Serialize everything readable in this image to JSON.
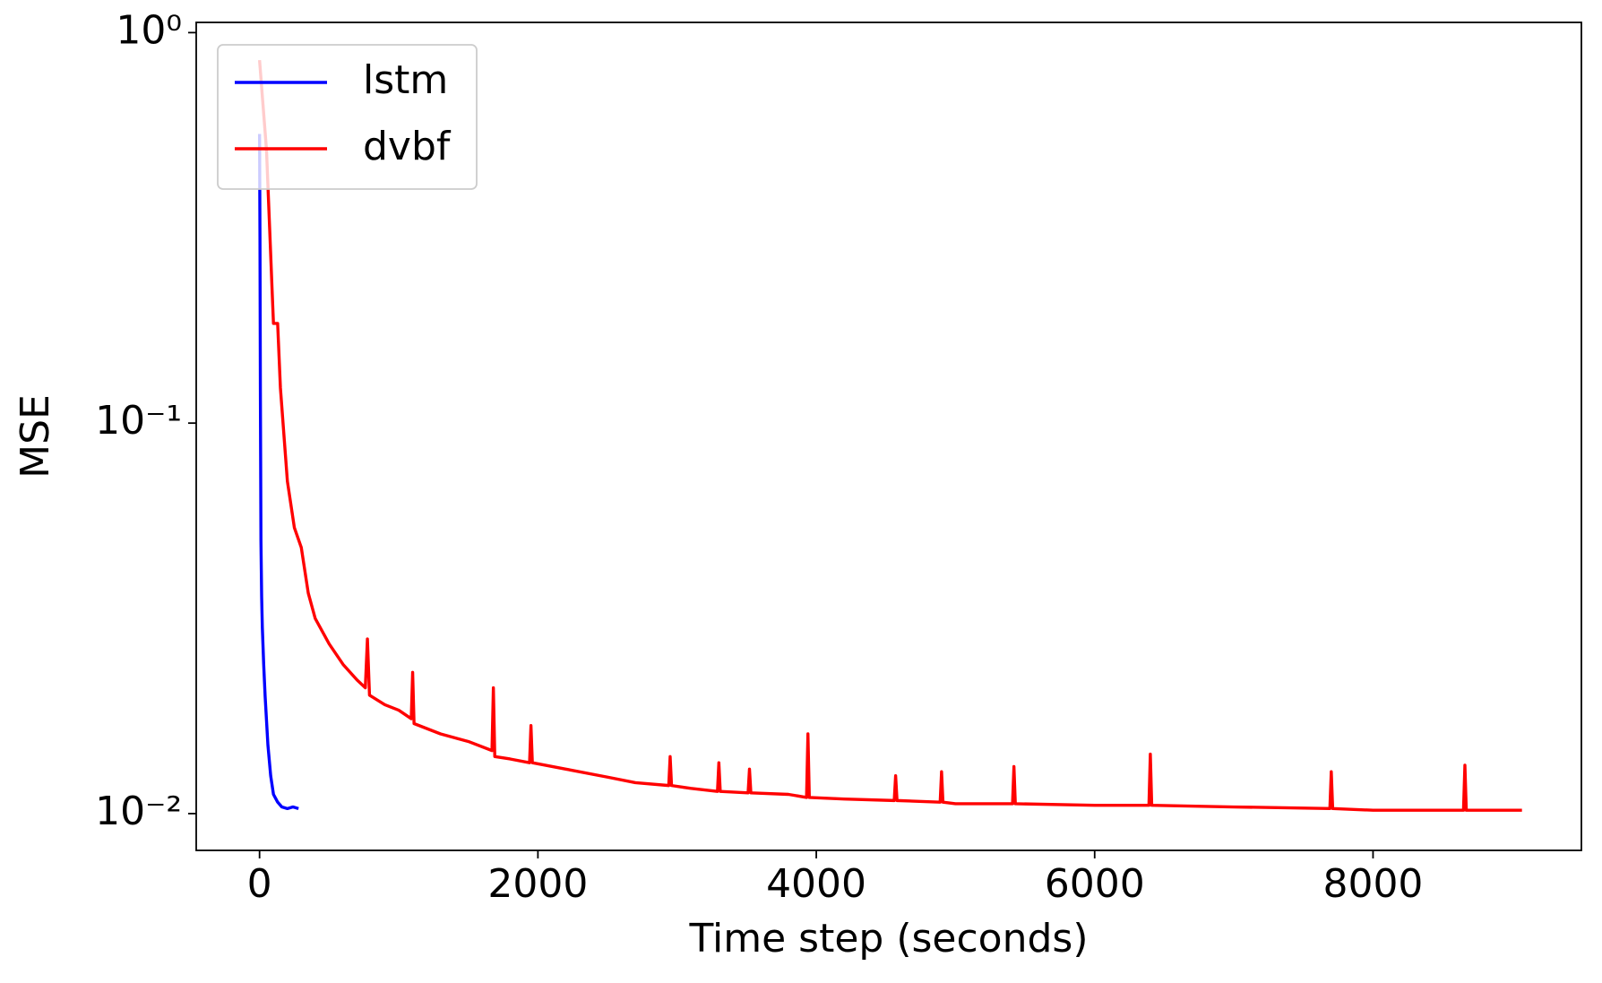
{
  "chart_data": {
    "type": "line",
    "xlabel": "Time step (seconds)",
    "ylabel": "MSE",
    "log_y": true,
    "grid": false,
    "legend": "upper left",
    "xlim": [
      -455,
      9497
    ],
    "xticks": [
      0,
      2000,
      4000,
      6000,
      8000
    ],
    "ylim": [
      0.00805,
      1.062
    ],
    "yticks": [
      {
        "value": 1,
        "label": "10⁰"
      },
      {
        "value": 0.1,
        "label": "10⁻¹"
      },
      {
        "value": 0.01,
        "label": "10⁻²"
      }
    ],
    "series": [
      {
        "name": "lstm",
        "color": "#0000ff",
        "x": [
          0,
          3,
          6,
          10,
          15,
          20,
          30,
          40,
          60,
          80,
          100,
          130,
          160,
          200,
          240,
          280
        ],
        "values": [
          0.55,
          0.3,
          0.12,
          0.05,
          0.036,
          0.03,
          0.024,
          0.02,
          0.015,
          0.0125,
          0.0112,
          0.0107,
          0.0104,
          0.0103,
          0.0104,
          0.0103
        ]
      },
      {
        "name": "dvbf",
        "color": "#ff0000",
        "x": [
          0,
          50,
          75,
          90,
          100,
          130,
          150,
          200,
          250,
          300,
          350,
          400,
          500,
          600,
          700,
          760,
          775,
          790,
          900,
          1000,
          1090,
          1100,
          1110,
          1300,
          1500,
          1670,
          1680,
          1690,
          1800,
          1940,
          1950,
          1960,
          2200,
          2500,
          2700,
          2940,
          2950,
          2960,
          3100,
          3290,
          3300,
          3310,
          3510,
          3520,
          3530,
          3800,
          3930,
          3940,
          3950,
          4200,
          4560,
          4570,
          4580,
          4890,
          4900,
          4910,
          5000,
          5410,
          5420,
          5430,
          6000,
          6390,
          6400,
          6410,
          7000,
          7690,
          7700,
          7710,
          8000,
          8650,
          8660,
          8670,
          9070
        ],
        "values": [
          0.85,
          0.5,
          0.3,
          0.22,
          0.18,
          0.18,
          0.123,
          0.071,
          0.054,
          0.048,
          0.0367,
          0.0316,
          0.0272,
          0.0241,
          0.022,
          0.021,
          0.028,
          0.0201,
          0.019,
          0.0184,
          0.0175,
          0.023,
          0.017,
          0.016,
          0.0153,
          0.0145,
          0.021,
          0.014,
          0.0138,
          0.0135,
          0.0168,
          0.0135,
          0.013,
          0.0124,
          0.012,
          0.0118,
          0.014,
          0.0118,
          0.0116,
          0.0114,
          0.0135,
          0.0114,
          0.0113,
          0.013,
          0.0113,
          0.0112,
          0.011,
          0.016,
          0.011,
          0.0109,
          0.0108,
          0.0125,
          0.0108,
          0.0107,
          0.0128,
          0.0107,
          0.0106,
          0.0106,
          0.0132,
          0.0106,
          0.0105,
          0.0105,
          0.0142,
          0.0105,
          0.0104,
          0.0103,
          0.0128,
          0.0103,
          0.0102,
          0.0102,
          0.0133,
          0.0102,
          0.0102
        ]
      }
    ]
  }
}
